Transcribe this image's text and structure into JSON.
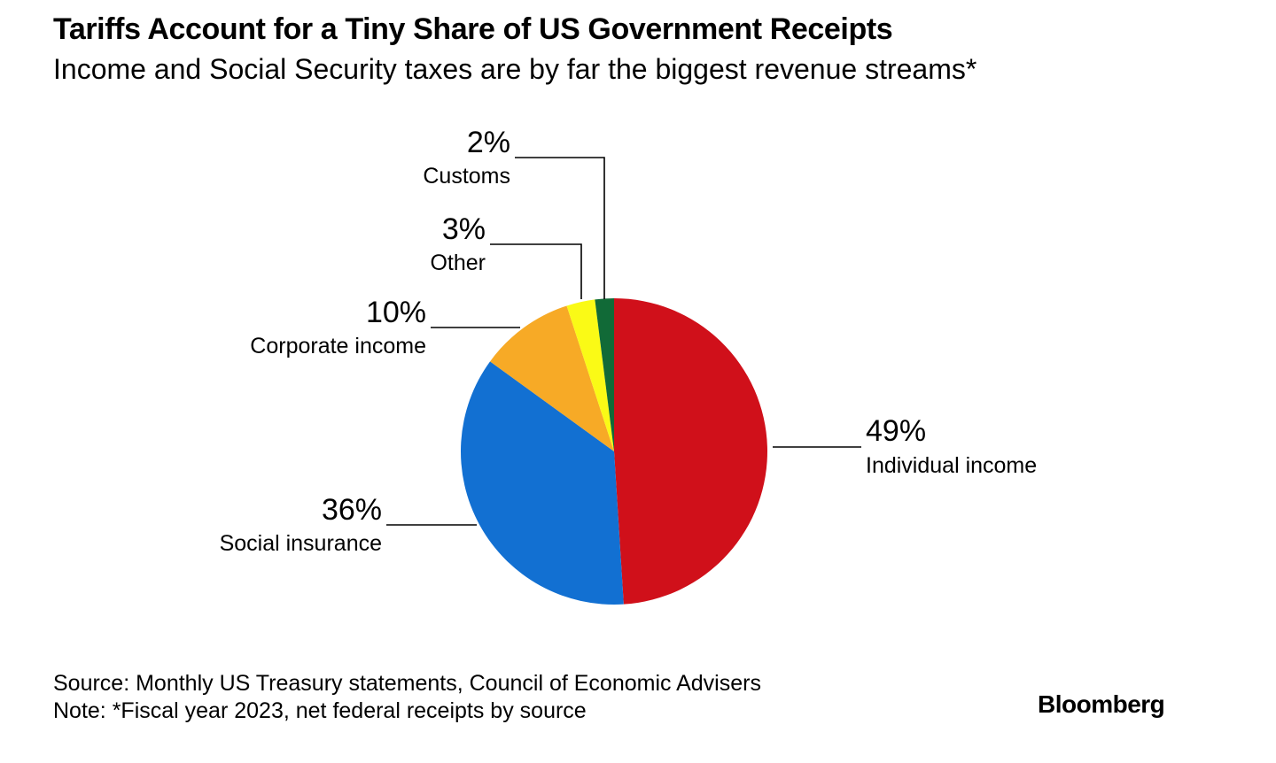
{
  "header": {
    "title": "Tariffs Account for a Tiny Share of US Government Receipts",
    "subtitle": "Income and Social Security taxes are by far the biggest revenue streams*"
  },
  "chart_data": {
    "type": "pie",
    "title": "Tariffs Account for a Tiny Share of US Government Receipts",
    "subtitle": "Income and Social Security taxes are by far the biggest revenue streams*",
    "unit": "%",
    "slices": [
      {
        "label": "Individual income",
        "value": 49,
        "value_label": "49%",
        "color": "#d0101a"
      },
      {
        "label": "Social insurance",
        "value": 36,
        "value_label": "36%",
        "color": "#1270d2"
      },
      {
        "label": "Corporate income",
        "value": 10,
        "value_label": "10%",
        "color": "#f7aa26"
      },
      {
        "label": "Other",
        "value": 3,
        "value_label": "3%",
        "color": "#fafa16"
      },
      {
        "label": "Customs",
        "value": 2,
        "value_label": "2%",
        "color": "#116a37"
      }
    ],
    "start": "12 o'clock",
    "direction": "clockwise",
    "legend": "none (direct labels)"
  },
  "footer": {
    "source": "Source: Monthly US Treasury statements, Council of Economic Advisers",
    "note": "Note: *Fiscal year 2023, net federal receipts by source"
  },
  "branding": {
    "logo": "Bloomberg"
  }
}
